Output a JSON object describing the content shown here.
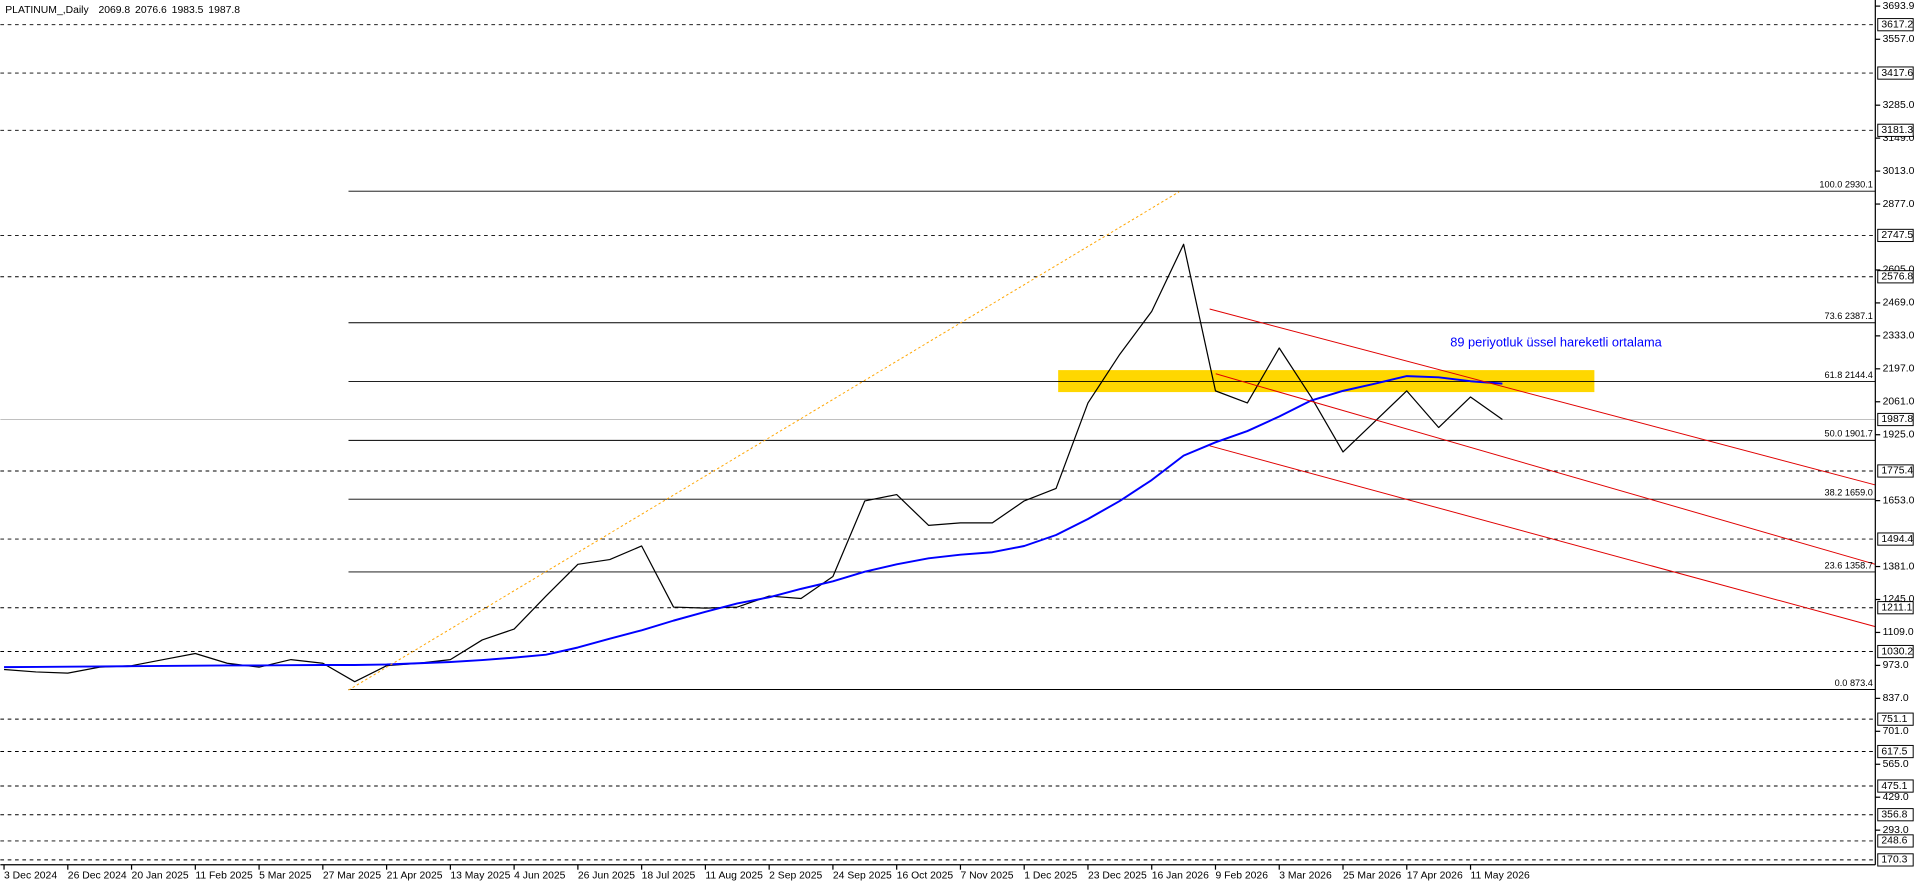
{
  "chart_data": {
    "type": "line",
    "title": "PLATINUM_,Daily",
    "ohlc": [
      2069.8,
      2076.6,
      1983.5,
      1987.8
    ],
    "categories": [
      "3 Dec 2024",
      null,
      "26 Dec 2024",
      null,
      "20 Jan 2025",
      null,
      "11 Feb 2025",
      null,
      "5 Mar 2025",
      null,
      "27 Mar 2025",
      null,
      "21 Apr 2025",
      null,
      "13 May 2025",
      null,
      "4 Jun 2025",
      null,
      "26 Jun 2025",
      null,
      "18 Jul 2025",
      null,
      "11 Aug 2025",
      null,
      "2 Sep 2025",
      null,
      "24 Sep 2025",
      null,
      "16 Oct 2025",
      null,
      "7 Nov 2025",
      null,
      "1 Dec 2025",
      null,
      "23 Dec 2025",
      null,
      "16 Jan 2026",
      null,
      "9 Feb 2026",
      null,
      "3 Mar 2026",
      null,
      "25 Mar 2026",
      null,
      "17 Apr 2026",
      null,
      "11 May 2026",
      null
    ],
    "series": [
      {
        "color": "#000000",
        "values": [
          956,
          946,
          941,
          966,
          972,
          997,
          1022,
          982,
          966,
          997,
          982,
          906,
          972,
          982,
          997,
          1078,
          1123,
          1259,
          1390,
          1410,
          1466,
          1214,
          1209,
          1214,
          1259,
          1249,
          1340,
          1652,
          1678,
          1551,
          1561,
          1561,
          1652,
          1703,
          2056,
          2257,
          2434,
          2711,
          2106,
          2056,
          2283,
          2081,
          1854,
          1980,
          2106,
          1955,
          2081,
          1988
        ]
      },
      {
        "name": "89 periyotluk üssel hareketli ortalama",
        "color": "#0000ff",
        "values": [
          966,
          967,
          968,
          969,
          970,
          971,
          972,
          973,
          973,
          974,
          975,
          975,
          977,
          982,
          987,
          995,
          1005,
          1017,
          1047,
          1083,
          1118,
          1158,
          1194,
          1229,
          1254,
          1289,
          1320,
          1360,
          1390,
          1415,
          1430,
          1440,
          1466,
          1511,
          1577,
          1652,
          1738,
          1839,
          1894,
          1940,
          2000,
          2066,
          2106,
          2136,
          2167,
          2162,
          2146,
          2136
        ]
      }
    ],
    "ylim": [
      170.3,
      3693.9
    ],
    "yticks": [
      3693.9,
      {
        "value": 3557,
        "label": "3557.0"
      },
      {
        "value": 3285,
        "label": "3285.0"
      },
      {
        "value": 3149,
        "label": "3149.0"
      },
      {
        "value": 3013,
        "label": "3013.0"
      },
      {
        "value": 2877,
        "label": "2877.0"
      },
      {
        "value": 2605,
        "label": "2605.0"
      },
      {
        "value": 2469,
        "label": "2469.0"
      },
      {
        "value": 2333,
        "label": "2333.0"
      },
      {
        "value": 2197,
        "label": "2197.0"
      },
      {
        "value": 2061,
        "label": "2061.0"
      },
      {
        "value": 1925,
        "label": "1925.0"
      },
      {
        "value": 1653,
        "label": "1653.0"
      },
      {
        "value": 1381,
        "label": "1381.0"
      },
      {
        "value": 1245,
        "label": "1245.0"
      },
      {
        "value": 1109,
        "label": "1109.0"
      },
      {
        "value": 973,
        "label": "973.0"
      },
      {
        "value": 837,
        "label": "837.0"
      },
      {
        "value": 701,
        "label": "701.0"
      },
      {
        "value": 565,
        "label": "565.0"
      },
      {
        "value": 429,
        "label": "429.0"
      },
      {
        "value": 293,
        "label": "293.0"
      }
    ],
    "levels": [
      3617.2,
      3417.6,
      3181.3,
      2747.5,
      2576.8,
      1775.4,
      1494.4,
      1211.1,
      1030.2,
      751.1,
      617.5,
      475.1,
      356.8,
      248.6,
      170.3
    ],
    "fibonacci": [
      {
        "value": 2930.1,
        "label": "100.0 2930.1"
      },
      {
        "value": 2387.1,
        "label": "73.6 2387.1"
      },
      {
        "value": 2144.4,
        "label": "61.8 2144.4"
      },
      {
        "value": 1901.7,
        "label": "50.0 1901.7"
      },
      {
        "value": 1659.0,
        "label": "38.2 1659.0"
      },
      {
        "value": 1358.7,
        "label": "23.6 1358.7"
      },
      {
        "value": 873.4,
        "label": "0.0 873.4"
      }
    ],
    "grid": false
  }
}
